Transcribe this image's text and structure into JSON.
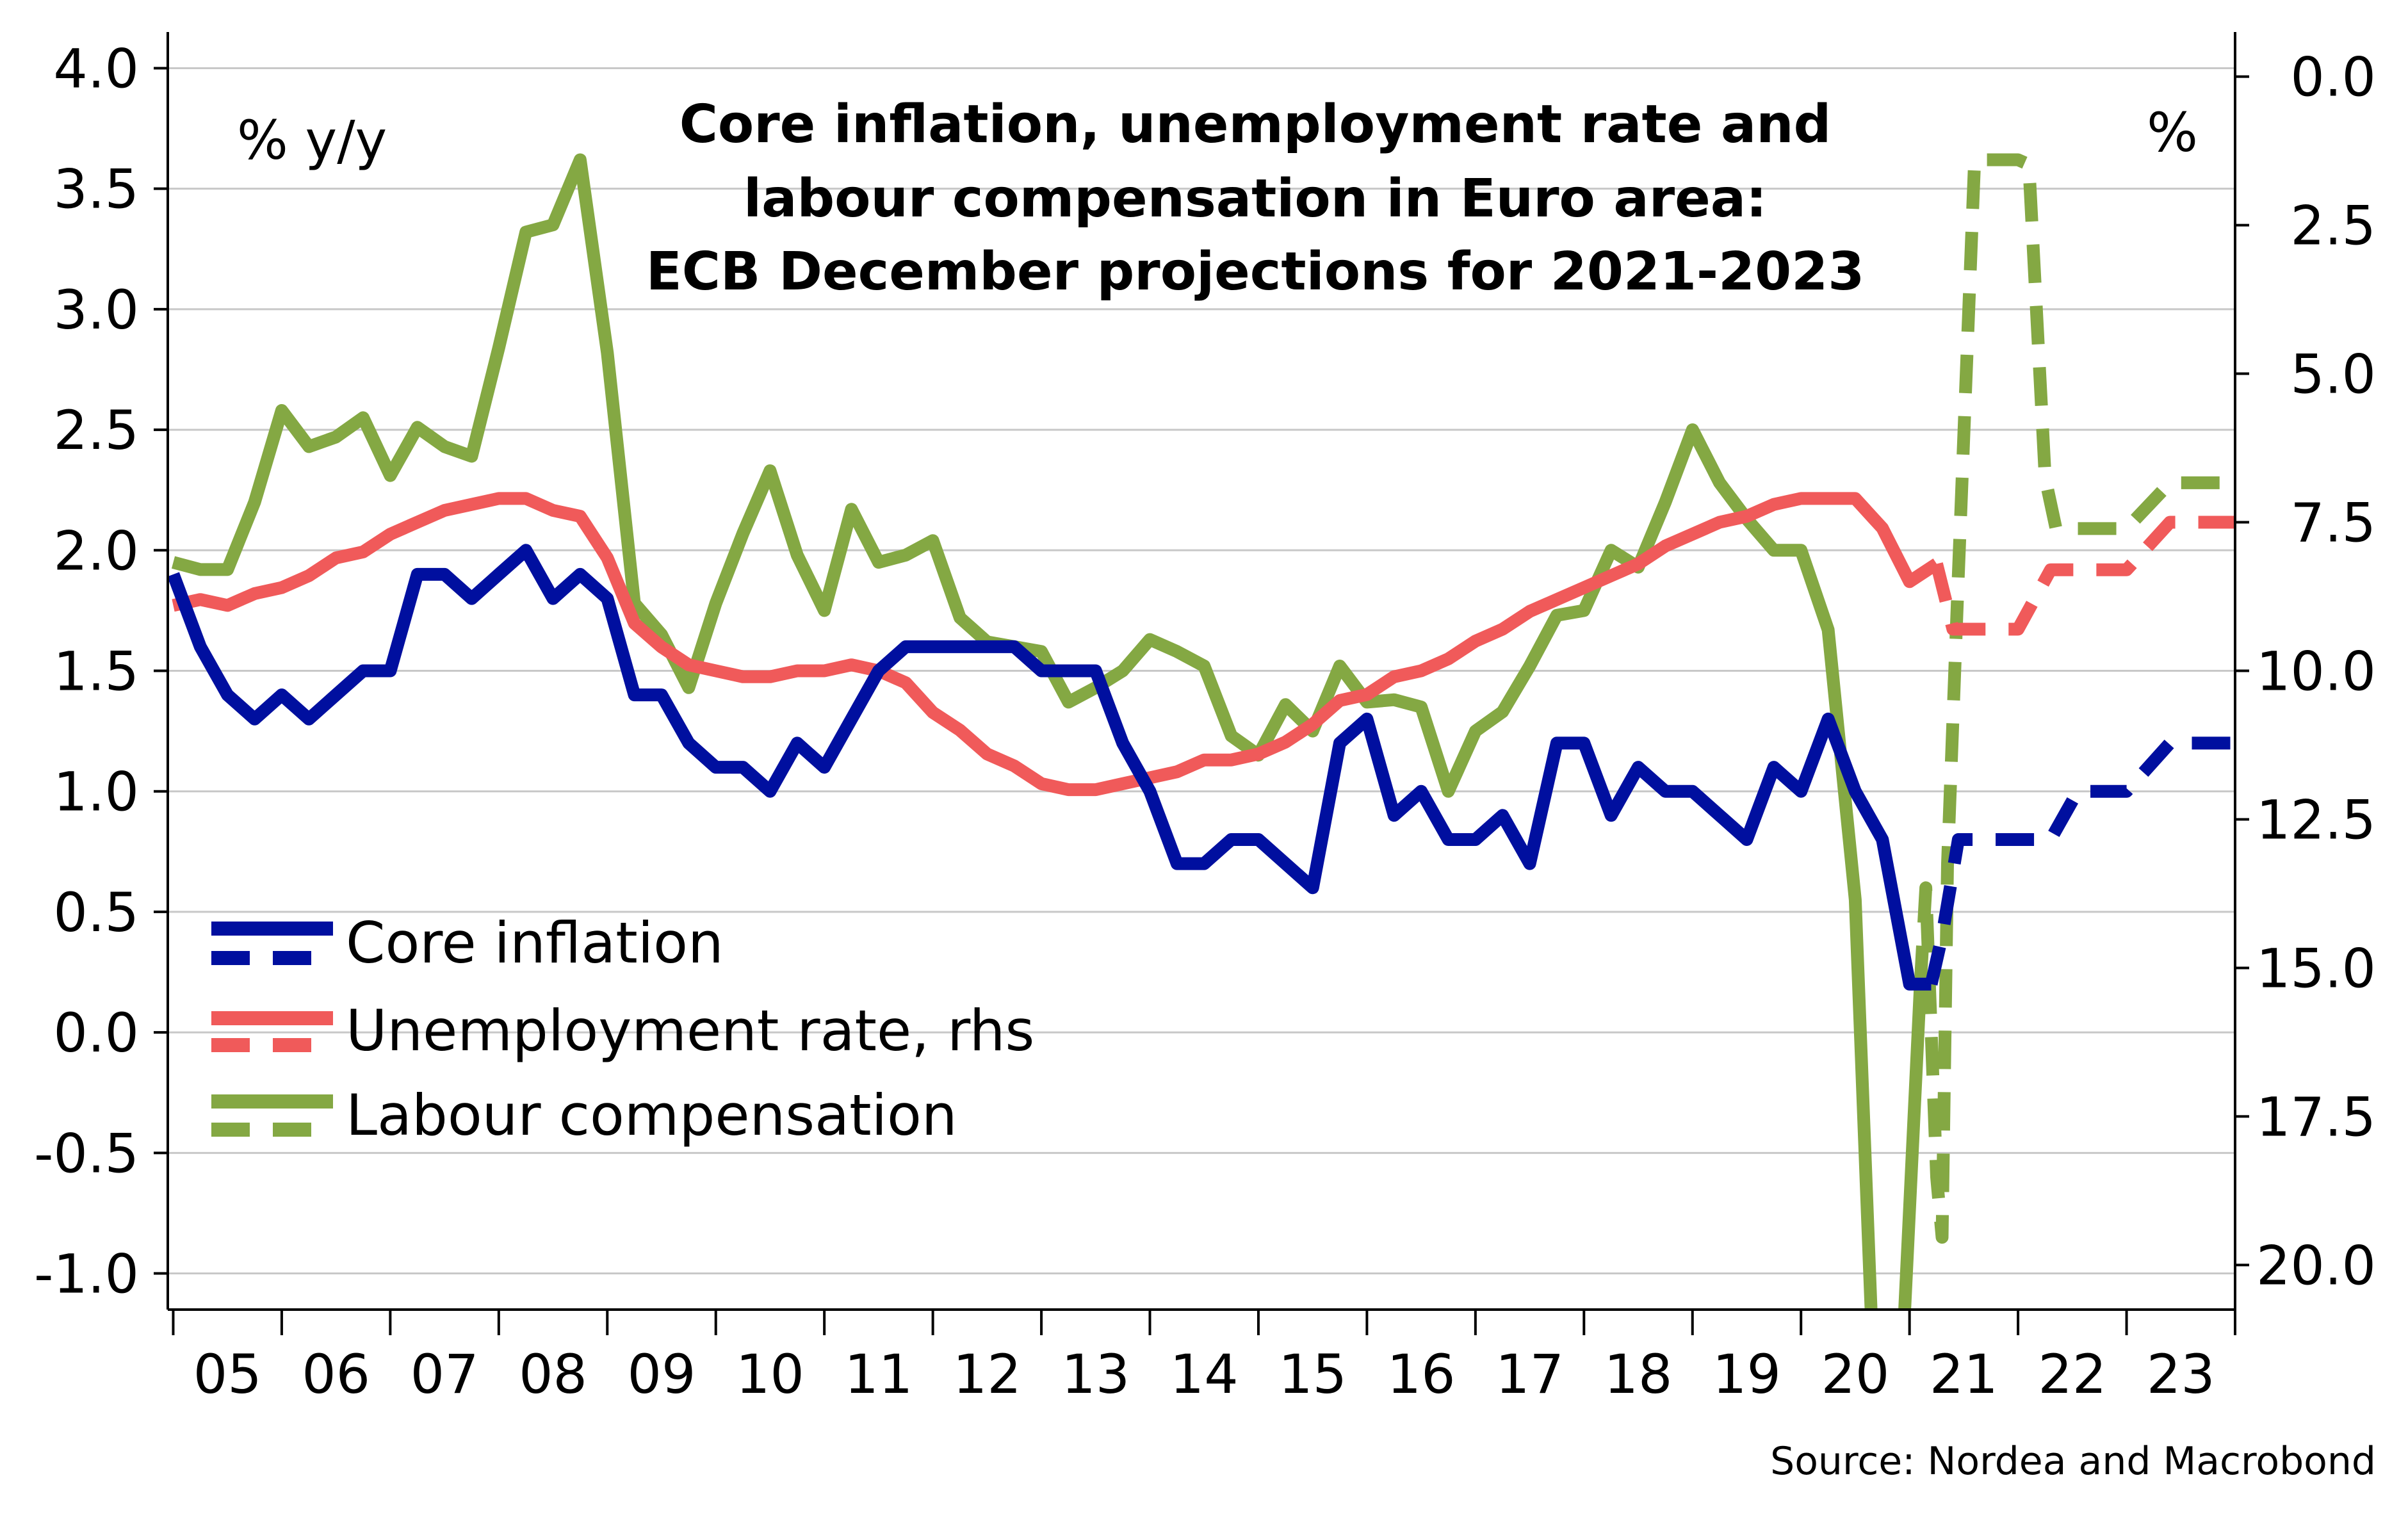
{
  "chart_data": {
    "type": "line",
    "title_lines": [
      "Core inflation, unemployment rate and",
      "labour compensation in Euro area:",
      "ECB December projections for 2021-2023"
    ],
    "y_left_unit": "% y/y",
    "y_right_unit": "%",
    "source": "Source: Nordea and Macrobond",
    "x_axis": {
      "range": [
        2004.95,
        2024.0
      ],
      "tick_labels": [
        {
          "label": "05",
          "year": 2005
        },
        {
          "label": "06",
          "year": 2006
        },
        {
          "label": "07",
          "year": 2007
        },
        {
          "label": "08",
          "year": 2008
        },
        {
          "label": "09",
          "year": 2009
        },
        {
          "label": "10",
          "year": 2010
        },
        {
          "label": "11",
          "year": 2011
        },
        {
          "label": "12",
          "year": 2012
        },
        {
          "label": "13",
          "year": 2013
        },
        {
          "label": "14",
          "year": 2014
        },
        {
          "label": "15",
          "year": 2015
        },
        {
          "label": "16",
          "year": 2016
        },
        {
          "label": "17",
          "year": 2017
        },
        {
          "label": "18",
          "year": 2018
        },
        {
          "label": "19",
          "year": 2019
        },
        {
          "label": "20",
          "year": 2020
        },
        {
          "label": "21",
          "year": 2021
        },
        {
          "label": "22",
          "year": 2022
        },
        {
          "label": "23",
          "year": 2023
        }
      ]
    },
    "y_left": {
      "range": [
        -1.15,
        4.15
      ],
      "ticks": [
        -1.0,
        -0.5,
        0.0,
        0.5,
        1.0,
        1.5,
        2.0,
        2.5,
        3.0,
        3.5,
        4.0
      ],
      "tick_labels": [
        "-1.0",
        "-0.5",
        "0.0",
        "0.5",
        "1.0",
        "1.5",
        "2.0",
        "2.5",
        "3.0",
        "3.5",
        "4.0"
      ]
    },
    "y_right": {
      "inverted": true,
      "range": [
        20.75,
        -0.75
      ],
      "ticks": [
        0.0,
        2.5,
        5.0,
        7.5,
        10.0,
        12.5,
        15.0,
        17.5,
        20.0
      ],
      "tick_labels": [
        "0.0",
        "2.5",
        "5.0",
        "7.5",
        "10.0",
        "12.5",
        "15.0",
        "17.5",
        "20.0"
      ]
    },
    "grid": true,
    "legend_position": "bottom-left",
    "series": [
      {
        "name": "Core inflation",
        "axis": "left",
        "color": "#000f9f",
        "actual": [
          [
            2005.0,
            1.9
          ],
          [
            2005.25,
            1.6
          ],
          [
            2005.5,
            1.4
          ],
          [
            2005.75,
            1.3
          ],
          [
            2006.0,
            1.4
          ],
          [
            2006.25,
            1.3
          ],
          [
            2006.5,
            1.4
          ],
          [
            2006.75,
            1.5
          ],
          [
            2007.0,
            1.5
          ],
          [
            2007.25,
            1.9
          ],
          [
            2007.5,
            1.9
          ],
          [
            2007.75,
            1.8
          ],
          [
            2008.0,
            1.9
          ],
          [
            2008.25,
            2.0
          ],
          [
            2008.5,
            1.8
          ],
          [
            2008.75,
            1.9
          ],
          [
            2009.0,
            1.8
          ],
          [
            2009.25,
            1.4
          ],
          [
            2009.5,
            1.4
          ],
          [
            2009.75,
            1.2
          ],
          [
            2010.0,
            1.1
          ],
          [
            2010.25,
            1.1
          ],
          [
            2010.5,
            1.0
          ],
          [
            2010.75,
            1.2
          ],
          [
            2011.0,
            1.1
          ],
          [
            2011.25,
            1.3
          ],
          [
            2011.5,
            1.5
          ],
          [
            2011.75,
            1.6
          ],
          [
            2012.0,
            1.6
          ],
          [
            2012.25,
            1.6
          ],
          [
            2012.5,
            1.6
          ],
          [
            2012.75,
            1.6
          ],
          [
            2013.0,
            1.5
          ],
          [
            2013.25,
            1.5
          ],
          [
            2013.5,
            1.5
          ],
          [
            2013.75,
            1.2
          ],
          [
            2014.0,
            1.0
          ],
          [
            2014.25,
            0.7
          ],
          [
            2014.5,
            0.7
          ],
          [
            2014.75,
            0.8
          ],
          [
            2015.0,
            0.8
          ],
          [
            2015.25,
            0.7
          ],
          [
            2015.5,
            0.6
          ],
          [
            2015.75,
            1.2
          ],
          [
            2016.0,
            1.3
          ],
          [
            2016.25,
            0.9
          ],
          [
            2016.5,
            1.0
          ],
          [
            2016.75,
            0.8
          ],
          [
            2017.0,
            0.8
          ],
          [
            2017.25,
            0.9
          ],
          [
            2017.5,
            0.7
          ],
          [
            2017.75,
            1.2
          ],
          [
            2018.0,
            1.2
          ],
          [
            2018.25,
            0.9
          ],
          [
            2018.5,
            1.1
          ],
          [
            2018.75,
            1.0
          ],
          [
            2019.0,
            1.0
          ],
          [
            2019.25,
            0.9
          ],
          [
            2019.5,
            0.8
          ],
          [
            2019.75,
            1.1
          ],
          [
            2020.0,
            1.0
          ],
          [
            2020.25,
            1.3
          ],
          [
            2020.5,
            1.0
          ],
          [
            2020.75,
            0.8
          ],
          [
            2021.0,
            0.2
          ],
          [
            2021.2,
            0.2
          ]
        ],
        "projection": [
          [
            2021.2,
            0.2
          ],
          [
            2021.3,
            0.4
          ],
          [
            2021.45,
            0.8
          ],
          [
            2021.75,
            0.8
          ],
          [
            2022.3,
            0.8
          ],
          [
            2022.55,
            1.0
          ],
          [
            2023.0,
            1.0
          ],
          [
            2023.4,
            1.2
          ],
          [
            2024.0,
            1.2
          ]
        ]
      },
      {
        "name": "Unemployment rate, rhs",
        "axis": "right",
        "color": "#f05a5a",
        "actual": [
          [
            2005.0,
            8.9
          ],
          [
            2005.25,
            8.8
          ],
          [
            2005.5,
            8.9
          ],
          [
            2005.75,
            8.7
          ],
          [
            2006.0,
            8.6
          ],
          [
            2006.25,
            8.4
          ],
          [
            2006.5,
            8.1
          ],
          [
            2006.75,
            8.0
          ],
          [
            2007.0,
            7.7
          ],
          [
            2007.25,
            7.5
          ],
          [
            2007.5,
            7.3
          ],
          [
            2007.75,
            7.2
          ],
          [
            2008.0,
            7.1
          ],
          [
            2008.25,
            7.1
          ],
          [
            2008.5,
            7.3
          ],
          [
            2008.75,
            7.4
          ],
          [
            2009.0,
            8.1
          ],
          [
            2009.25,
            9.2
          ],
          [
            2009.5,
            9.6
          ],
          [
            2009.75,
            9.9
          ],
          [
            2010.0,
            10.0
          ],
          [
            2010.25,
            10.1
          ],
          [
            2010.5,
            10.1
          ],
          [
            2010.75,
            10.0
          ],
          [
            2011.0,
            10.0
          ],
          [
            2011.25,
            9.9
          ],
          [
            2011.5,
            10.0
          ],
          [
            2011.75,
            10.2
          ],
          [
            2012.0,
            10.7
          ],
          [
            2012.25,
            11.0
          ],
          [
            2012.5,
            11.4
          ],
          [
            2012.75,
            11.6
          ],
          [
            2013.0,
            11.9
          ],
          [
            2013.25,
            12.0
          ],
          [
            2013.5,
            12.0
          ],
          [
            2013.75,
            11.9
          ],
          [
            2014.0,
            11.8
          ],
          [
            2014.25,
            11.7
          ],
          [
            2014.5,
            11.5
          ],
          [
            2014.75,
            11.5
          ],
          [
            2015.0,
            11.4
          ],
          [
            2015.25,
            11.2
          ],
          [
            2015.5,
            10.9
          ],
          [
            2015.75,
            10.5
          ],
          [
            2016.0,
            10.4
          ],
          [
            2016.25,
            10.1
          ],
          [
            2016.5,
            10.0
          ],
          [
            2016.75,
            9.8
          ],
          [
            2017.0,
            9.5
          ],
          [
            2017.25,
            9.3
          ],
          [
            2017.5,
            9.0
          ],
          [
            2017.75,
            8.8
          ],
          [
            2018.0,
            8.6
          ],
          [
            2018.25,
            8.4
          ],
          [
            2018.5,
            8.2
          ],
          [
            2018.75,
            7.9
          ],
          [
            2019.0,
            7.7
          ],
          [
            2019.25,
            7.5
          ],
          [
            2019.5,
            7.4
          ],
          [
            2019.75,
            7.2
          ],
          [
            2020.0,
            7.1
          ],
          [
            2020.25,
            7.1
          ],
          [
            2020.5,
            7.1
          ],
          [
            2020.75,
            7.6
          ],
          [
            2021.0,
            8.5
          ],
          [
            2021.25,
            8.2
          ]
        ],
        "projection": [
          [
            2021.25,
            8.2
          ],
          [
            2021.4,
            9.3
          ],
          [
            2021.75,
            9.3
          ],
          [
            2022.0,
            9.3
          ],
          [
            2022.3,
            8.3
          ],
          [
            2022.55,
            8.3
          ],
          [
            2023.0,
            8.3
          ],
          [
            2023.4,
            7.5
          ],
          [
            2024.0,
            7.5
          ]
        ]
      },
      {
        "name": "Labour compensation",
        "axis": "left",
        "color": "#84a843",
        "actual": [
          [
            2005.0,
            1.95
          ],
          [
            2005.25,
            1.92
          ],
          [
            2005.5,
            1.92
          ],
          [
            2005.75,
            2.2
          ],
          [
            2006.0,
            2.58
          ],
          [
            2006.25,
            2.43
          ],
          [
            2006.5,
            2.47
          ],
          [
            2006.75,
            2.55
          ],
          [
            2007.0,
            2.31
          ],
          [
            2007.25,
            2.51
          ],
          [
            2007.5,
            2.43
          ],
          [
            2007.75,
            2.39
          ],
          [
            2008.0,
            2.84
          ],
          [
            2008.25,
            3.32
          ],
          [
            2008.5,
            3.35
          ],
          [
            2008.75,
            3.62
          ],
          [
            2009.0,
            2.82
          ],
          [
            2009.25,
            1.78
          ],
          [
            2009.5,
            1.65
          ],
          [
            2009.75,
            1.43
          ],
          [
            2010.0,
            1.78
          ],
          [
            2010.25,
            2.07
          ],
          [
            2010.5,
            2.33
          ],
          [
            2010.75,
            1.98
          ],
          [
            2011.0,
            1.75
          ],
          [
            2011.25,
            2.17
          ],
          [
            2011.5,
            1.95
          ],
          [
            2011.75,
            1.98
          ],
          [
            2012.0,
            2.04
          ],
          [
            2012.25,
            1.72
          ],
          [
            2012.5,
            1.62
          ],
          [
            2012.75,
            1.6
          ],
          [
            2013.0,
            1.58
          ],
          [
            2013.25,
            1.37
          ],
          [
            2013.5,
            1.43
          ],
          [
            2013.75,
            1.5
          ],
          [
            2014.0,
            1.63
          ],
          [
            2014.25,
            1.58
          ],
          [
            2014.5,
            1.52
          ],
          [
            2014.75,
            1.23
          ],
          [
            2015.0,
            1.15
          ],
          [
            2015.25,
            1.36
          ],
          [
            2015.5,
            1.25
          ],
          [
            2015.75,
            1.52
          ],
          [
            2016.0,
            1.37
          ],
          [
            2016.25,
            1.38
          ],
          [
            2016.5,
            1.35
          ],
          [
            2016.75,
            1.0
          ],
          [
            2017.0,
            1.25
          ],
          [
            2017.25,
            1.33
          ],
          [
            2017.5,
            1.52
          ],
          [
            2017.75,
            1.73
          ],
          [
            2018.0,
            1.75
          ],
          [
            2018.25,
            2.0
          ],
          [
            2018.5,
            1.93
          ],
          [
            2018.75,
            2.2
          ],
          [
            2019.0,
            2.5
          ],
          [
            2019.25,
            2.28
          ],
          [
            2019.5,
            2.13
          ],
          [
            2019.75,
            2.0
          ],
          [
            2020.0,
            2.0
          ],
          [
            2020.25,
            1.67
          ],
          [
            2020.5,
            0.55
          ],
          [
            2020.65,
            -1.2
          ],
          [
            2020.95,
            -1.2
          ],
          [
            2021.1,
            0.2
          ]
        ],
        "projection": [
          [
            2021.1,
            0.2
          ],
          [
            2021.15,
            0.6
          ],
          [
            2021.25,
            -0.6
          ],
          [
            2021.3,
            -0.85
          ],
          [
            2021.35,
            0.7
          ],
          [
            2021.45,
            1.9
          ],
          [
            2021.6,
            3.62
          ],
          [
            2021.75,
            3.62
          ],
          [
            2022.0,
            3.62
          ],
          [
            2022.1,
            3.6
          ],
          [
            2022.25,
            2.3
          ],
          [
            2022.35,
            2.09
          ],
          [
            2022.6,
            2.09
          ],
          [
            2023.0,
            2.09
          ],
          [
            2023.4,
            2.28
          ],
          [
            2024.0,
            2.28
          ]
        ]
      }
    ]
  }
}
